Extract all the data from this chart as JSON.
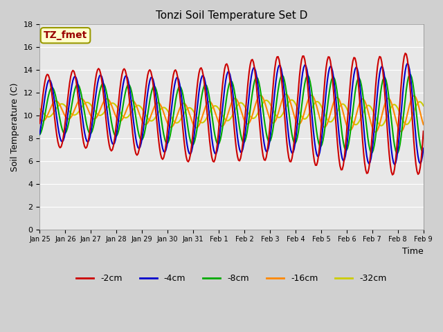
{
  "title": "Tonzi Soil Temperature Set D",
  "xlabel": "Time",
  "ylabel": "Soil Temperature (C)",
  "annotation_text": "TZ_fmet",
  "annotation_bg": "#ffffcc",
  "annotation_border": "#999900",
  "annotation_text_color": "#990000",
  "ylim": [
    0,
    18
  ],
  "yticks": [
    0,
    2,
    4,
    6,
    8,
    10,
    12,
    14,
    16,
    18
  ],
  "xtick_labels": [
    "Jan 25",
    "Jan 26",
    "Jan 27",
    "Jan 28",
    "Jan 29",
    "Jan 30",
    "Jan 31",
    "Feb 1",
    "Feb 2",
    "Feb 3",
    "Feb 4",
    "Feb 5",
    "Feb 6",
    "Feb 7",
    "Feb 8",
    "Feb 9"
  ],
  "colors": {
    "-2cm": "#cc0000",
    "-4cm": "#0000cc",
    "-8cm": "#00aa00",
    "-16cm": "#ff8800",
    "-32cm": "#cccc00"
  },
  "linewidth": 1.5,
  "legend_labels": [
    "-2cm",
    "-4cm",
    "-8cm",
    "-16cm",
    "-32cm"
  ],
  "legend_colors": [
    "#cc0000",
    "#0000cc",
    "#00aa00",
    "#ff8800",
    "#cccc00"
  ],
  "n_days": 15,
  "n_pts": 360
}
